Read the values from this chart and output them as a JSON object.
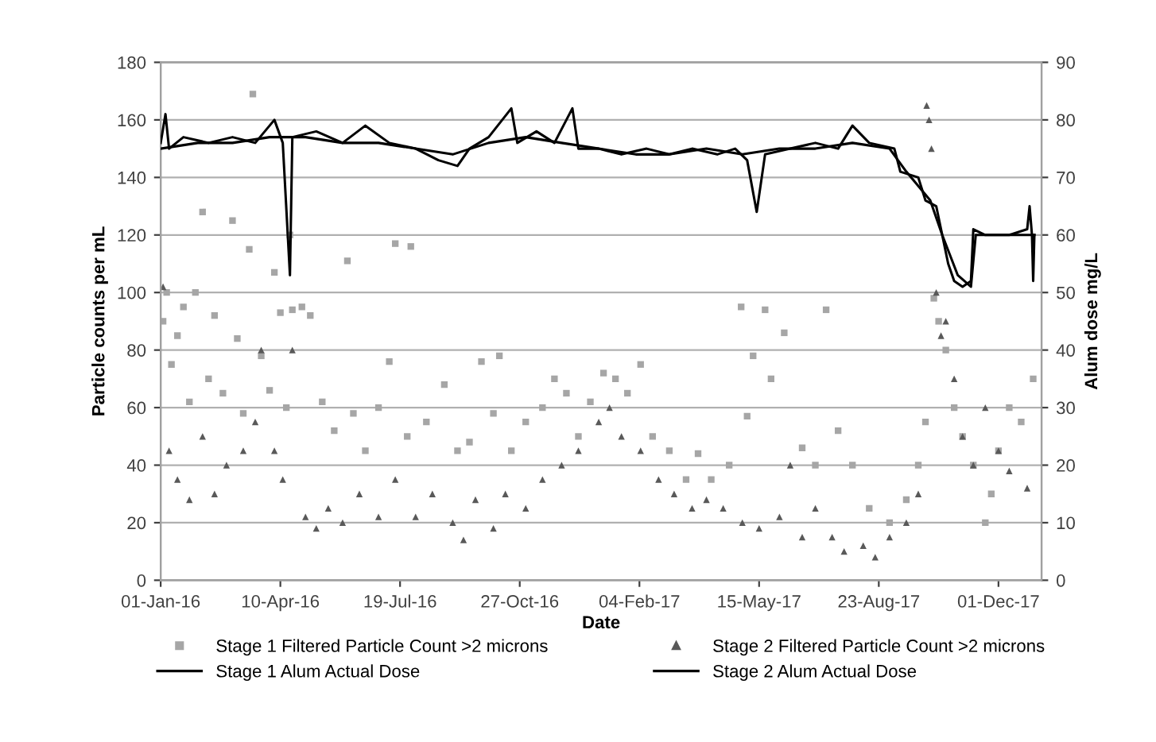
{
  "chart_data": {
    "type": "scatter",
    "xlabel": "Date",
    "ylabel": "Particle counts per mL",
    "y2label": "Alum dose mg/L",
    "xlim": [
      "2016-01-01",
      "2018-01-06"
    ],
    "xticks": [
      {
        "value": "2016-01-01",
        "label": "01-Jan-16"
      },
      {
        "value": "2016-04-10",
        "label": "10-Apr-16"
      },
      {
        "value": "2016-07-19",
        "label": "19-Jul-16"
      },
      {
        "value": "2016-10-27",
        "label": "27-Oct-16"
      },
      {
        "value": "2017-02-04",
        "label": "04-Feb-17"
      },
      {
        "value": "2017-05-15",
        "label": "15-May-17"
      },
      {
        "value": "2017-08-23",
        "label": "23-Aug-17"
      },
      {
        "value": "2017-12-01",
        "label": "01-Dec-17"
      }
    ],
    "ylim": [
      0,
      180
    ],
    "yticks": [
      0,
      20,
      40,
      60,
      80,
      100,
      120,
      140,
      160,
      180
    ],
    "y2lim": [
      0,
      90
    ],
    "y2ticks": [
      0,
      10,
      20,
      30,
      40,
      50,
      60,
      70,
      80,
      90
    ],
    "grid": "y",
    "legend": "bottom",
    "series": [
      {
        "name": "Stage 1 Filtered Particle Count >2 microns",
        "marker": "square",
        "color": "#a6a6a6",
        "x": [
          "2016-01-03",
          "2016-01-06",
          "2016-01-10",
          "2016-01-15",
          "2016-01-20",
          "2016-01-25",
          "2016-01-30",
          "2016-02-05",
          "2016-02-10",
          "2016-02-15",
          "2016-02-22",
          "2016-03-01",
          "2016-03-05",
          "2016-03-10",
          "2016-03-15",
          "2016-03-18",
          "2016-03-25",
          "2016-04-01",
          "2016-04-05",
          "2016-04-10",
          "2016-04-15",
          "2016-04-18",
          "2016-04-20",
          "2016-04-28",
          "2016-05-05",
          "2016-05-15",
          "2016-05-25",
          "2016-06-05",
          "2016-06-10",
          "2016-06-20",
          "2016-07-01",
          "2016-07-10",
          "2016-07-15",
          "2016-07-25",
          "2016-07-28",
          "2016-08-10",
          "2016-08-25",
          "2016-09-05",
          "2016-09-15",
          "2016-09-25",
          "2016-10-05",
          "2016-10-10",
          "2016-10-20",
          "2016-11-01",
          "2016-11-15",
          "2016-11-25",
          "2016-12-05",
          "2016-12-15",
          "2016-12-25",
          "2017-01-05",
          "2017-01-15",
          "2017-01-25",
          "2017-02-05",
          "2017-02-15",
          "2017-03-01",
          "2017-03-15",
          "2017-03-25",
          "2017-04-05",
          "2017-04-20",
          "2017-04-30",
          "2017-05-05",
          "2017-05-10",
          "2017-05-20",
          "2017-05-25",
          "2017-06-05",
          "2017-06-20",
          "2017-07-01",
          "2017-07-10",
          "2017-07-20",
          "2017-08-01",
          "2017-08-15",
          "2017-09-01",
          "2017-09-15",
          "2017-09-25",
          "2017-10-01",
          "2017-10-08",
          "2017-10-12",
          "2017-10-18",
          "2017-10-25",
          "2017-11-01",
          "2017-11-10",
          "2017-11-20",
          "2017-11-25",
          "2017-12-01",
          "2017-12-10",
          "2017-12-20",
          "2017-12-30"
        ],
        "values": [
          90,
          100,
          75,
          85,
          95,
          62,
          100,
          128,
          70,
          92,
          65,
          125,
          84,
          58,
          115,
          169,
          78,
          66,
          107,
          93,
          60,
          120,
          94,
          95,
          92,
          62,
          52,
          111,
          58,
          45,
          60,
          76,
          117,
          50,
          116,
          55,
          68,
          45,
          48,
          76,
          58,
          78,
          45,
          55,
          60,
          70,
          65,
          50,
          62,
          72,
          70,
          65,
          75,
          50,
          45,
          35,
          44,
          35,
          40,
          95,
          57,
          78,
          94,
          70,
          86,
          46,
          40,
          94,
          52,
          40,
          25,
          20,
          28,
          40,
          55,
          98,
          90,
          80,
          60,
          50,
          40,
          20,
          30,
          45,
          60,
          55,
          70
        ]
      },
      {
        "name": "Stage 2 Filtered Particle Count >2 microns",
        "marker": "triangle",
        "color": "#595959",
        "x": [
          "2016-01-03",
          "2016-01-08",
          "2016-01-15",
          "2016-01-25",
          "2016-02-05",
          "2016-02-15",
          "2016-02-25",
          "2016-03-10",
          "2016-03-20",
          "2016-03-25",
          "2016-04-05",
          "2016-04-12",
          "2016-04-20",
          "2016-05-01",
          "2016-05-10",
          "2016-05-20",
          "2016-06-01",
          "2016-06-15",
          "2016-07-01",
          "2016-07-15",
          "2016-08-01",
          "2016-08-15",
          "2016-09-01",
          "2016-09-10",
          "2016-09-20",
          "2016-10-05",
          "2016-10-15",
          "2016-11-01",
          "2016-11-15",
          "2016-12-01",
          "2016-12-15",
          "2017-01-01",
          "2017-01-10",
          "2017-01-20",
          "2017-02-05",
          "2017-02-20",
          "2017-03-05",
          "2017-03-20",
          "2017-04-01",
          "2017-04-15",
          "2017-05-01",
          "2017-05-15",
          "2017-06-01",
          "2017-06-10",
          "2017-06-20",
          "2017-07-01",
          "2017-07-15",
          "2017-07-25",
          "2017-08-10",
          "2017-08-20",
          "2017-09-01",
          "2017-09-15",
          "2017-09-25",
          "2017-10-02",
          "2017-10-04",
          "2017-10-06",
          "2017-10-10",
          "2017-10-14",
          "2017-10-18",
          "2017-10-25",
          "2017-11-01",
          "2017-11-10",
          "2017-11-20",
          "2017-12-01",
          "2017-12-10",
          "2017-12-25"
        ],
        "values": [
          102,
          45,
          35,
          28,
          50,
          30,
          40,
          45,
          55,
          80,
          45,
          35,
          80,
          22,
          18,
          25,
          20,
          30,
          22,
          35,
          22,
          30,
          20,
          14,
          28,
          18,
          30,
          25,
          35,
          40,
          45,
          55,
          60,
          50,
          45,
          35,
          30,
          25,
          28,
          25,
          20,
          18,
          22,
          40,
          15,
          25,
          15,
          10,
          12,
          8,
          15,
          20,
          30,
          165,
          160,
          150,
          100,
          85,
          90,
          70,
          50,
          40,
          60,
          45,
          38,
          32
        ]
      },
      {
        "name": "Stage 1 Alum Actual Dose",
        "type": "line",
        "axis": "y2",
        "marker": "none",
        "line_style": "solid",
        "color": "#000000",
        "x": [
          "2016-01-01",
          "2016-01-05",
          "2016-01-08",
          "2016-01-20",
          "2016-02-10",
          "2016-03-01",
          "2016-03-20",
          "2016-04-05",
          "2016-04-12",
          "2016-04-18",
          "2016-04-20",
          "2016-05-10",
          "2016-06-01",
          "2016-06-20",
          "2016-07-10",
          "2016-08-01",
          "2016-08-20",
          "2016-09-05",
          "2016-09-15",
          "2016-10-01",
          "2016-10-20",
          "2016-10-25",
          "2016-11-10",
          "2016-11-25",
          "2016-12-10",
          "2016-12-15",
          "2017-01-01",
          "2017-01-20",
          "2017-02-10",
          "2017-03-01",
          "2017-03-20",
          "2017-04-10",
          "2017-04-25",
          "2017-05-05",
          "2017-05-13",
          "2017-05-20",
          "2017-06-10",
          "2017-07-01",
          "2017-07-20",
          "2017-08-01",
          "2017-08-15",
          "2017-09-05",
          "2017-09-10",
          "2017-09-25",
          "2017-10-01",
          "2017-10-10",
          "2017-10-15",
          "2017-10-20",
          "2017-10-25",
          "2017-11-01",
          "2017-11-08",
          "2017-11-10",
          "2017-11-20",
          "2017-12-10",
          "2017-12-25",
          "2017-12-27",
          "2017-12-29",
          "2017-12-30",
          "2017-12-31"
        ],
        "values": [
          76,
          81,
          75,
          77,
          76,
          77,
          76,
          80,
          76,
          53,
          77,
          78,
          76,
          79,
          76,
          75,
          73,
          72,
          75,
          77,
          82,
          76,
          78,
          76,
          82,
          75,
          75,
          74,
          75,
          74,
          75,
          74,
          75,
          73,
          64,
          74,
          75,
          76,
          75,
          79,
          76,
          75,
          71,
          70,
          66,
          65,
          60,
          55,
          52,
          51,
          52,
          61,
          60,
          60,
          61,
          65,
          60,
          52,
          60
        ]
      },
      {
        "name": "Stage 2 Alum Actual Dose",
        "type": "line",
        "axis": "y2",
        "marker": "none",
        "line_style": "solid",
        "color": "#000000",
        "x": [
          "2016-01-01",
          "2016-02-01",
          "2016-03-01",
          "2016-04-01",
          "2016-05-01",
          "2016-06-01",
          "2016-07-01",
          "2016-08-01",
          "2016-09-01",
          "2016-10-01",
          "2016-11-01",
          "2016-12-01",
          "2017-01-01",
          "2017-02-01",
          "2017-03-01",
          "2017-04-01",
          "2017-05-01",
          "2017-06-01",
          "2017-07-01",
          "2017-08-01",
          "2017-09-01",
          "2017-09-15",
          "2017-10-05",
          "2017-10-15",
          "2017-10-28",
          "2017-11-08",
          "2017-11-12",
          "2017-12-01",
          "2017-12-31"
        ],
        "values": [
          75,
          76,
          76,
          77,
          77,
          76,
          76,
          75,
          74,
          76,
          77,
          76,
          75,
          74,
          74,
          75,
          74,
          75,
          75,
          76,
          75,
          71,
          66,
          60,
          53,
          51,
          60,
          60,
          60
        ]
      }
    ]
  }
}
